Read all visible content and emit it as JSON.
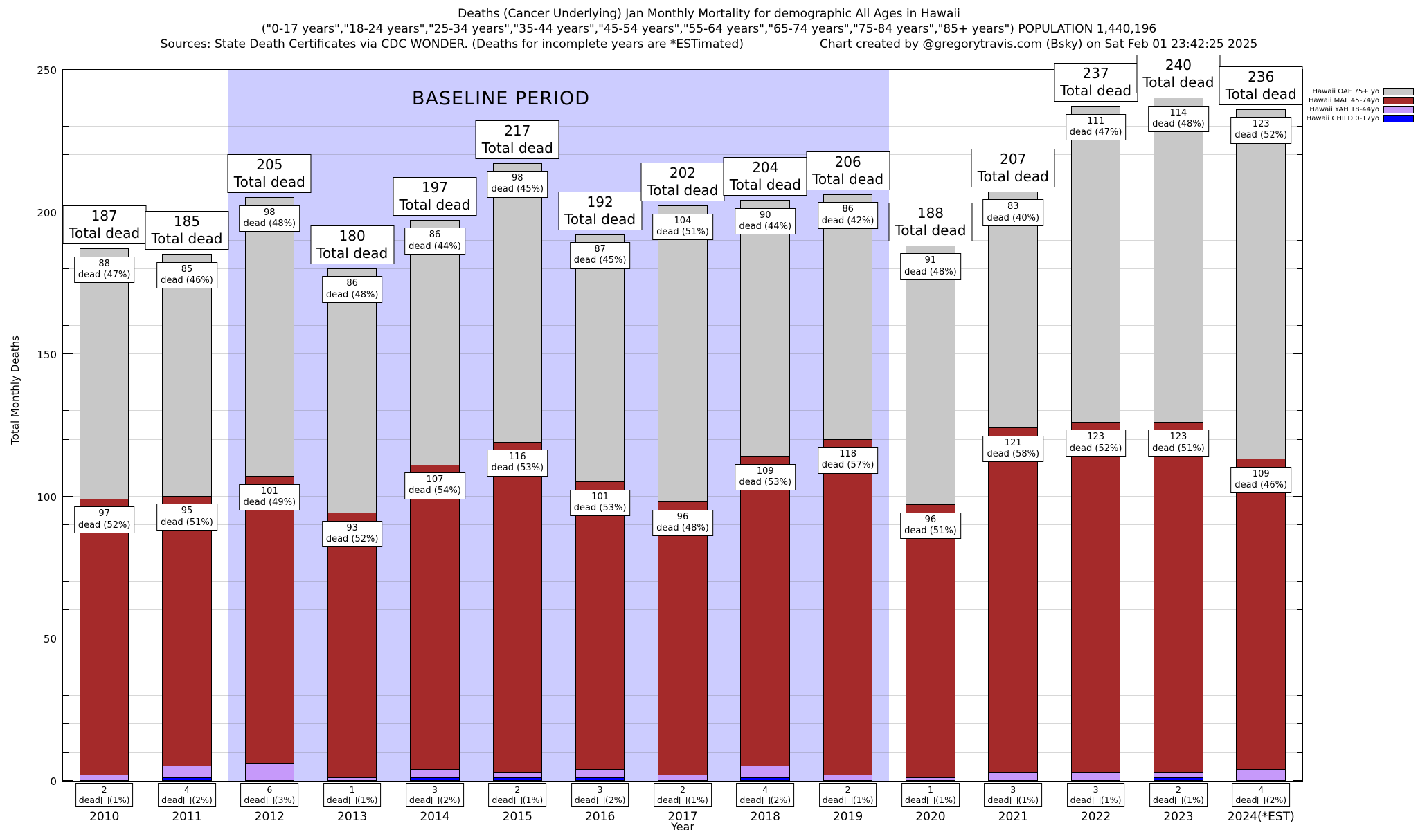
{
  "header": {
    "title_line1": "Deaths (Cancer Underlying) Jan Monthly Mortality for demographic All Ages in Hawaii",
    "title_line2": "(\"0-17 years\",\"18-24 years\",\"25-34 years\",\"35-44 years\",\"45-54 years\",\"55-64 years\",\"65-74 years\",\"75-84 years\",\"85+ years\") POPULATION 1,440,196",
    "sources": "Sources: State Death Certificates via CDC WONDER. (Deaths for incomplete years are *ESTimated)",
    "credit": "Chart created by @gregorytravis.com (Bsky) on Sat Feb 01 23:42:25 2025"
  },
  "legend": [
    {
      "label": "Hawaii OAF 75+ yo",
      "color": "#c8c8c8"
    },
    {
      "label": "Hawaii MAL 45-74yo",
      "color": "#a52a2a"
    },
    {
      "label": "Hawaii YAH 18-44yo",
      "color": "#c699fa"
    },
    {
      "label": "Hawaii CHILD 0-17yo",
      "color": "#0000ff"
    }
  ],
  "axes": {
    "ylabel": "Total Monthly Deaths",
    "xlabel": "Year",
    "ylim": [
      0,
      250
    ],
    "yticks_major": [
      0,
      50,
      100,
      150,
      200,
      250
    ],
    "ytick_minor_step": 10,
    "grid_step": 10
  },
  "baseline": {
    "label": "BASELINE PERIOD",
    "start_year": "2012",
    "end_year": "2019",
    "band_color": "#ccccff"
  },
  "chart_data": {
    "type": "bar",
    "stacked": true,
    "title": "Deaths (Cancer Underlying) Jan Monthly Mortality for demographic All Ages in Hawaii",
    "xlabel": "Year",
    "ylabel": "Total Monthly Deaths",
    "ylim": [
      0,
      250
    ],
    "legend_position": "top-right",
    "categories": [
      "2010",
      "2011",
      "2012",
      "2013",
      "2014",
      "2015",
      "2016",
      "2017",
      "2018",
      "2019",
      "2020",
      "2021",
      "2022",
      "2023",
      "2024(*EST)"
    ],
    "totals": [
      187,
      185,
      205,
      180,
      197,
      217,
      192,
      202,
      204,
      206,
      188,
      207,
      237,
      240,
      236
    ],
    "total_label_suffix": "Total dead",
    "series": [
      {
        "name": "Hawaii CHILD 0-17yo",
        "color": "#0000ff",
        "values": [
          0,
          1,
          0,
          0,
          1,
          1,
          1,
          0,
          1,
          0,
          0,
          0,
          0,
          1,
          0
        ],
        "labeled": false
      },
      {
        "name": "Hawaii YAH 18-44yo",
        "color": "#c699fa",
        "values": [
          2,
          4,
          6,
          1,
          3,
          2,
          3,
          2,
          4,
          2,
          1,
          3,
          3,
          2,
          4
        ],
        "pcts": [
          1,
          2,
          3,
          1,
          2,
          1,
          2,
          1,
          2,
          1,
          1,
          1,
          1,
          1,
          2
        ],
        "labeled": true
      },
      {
        "name": "Hawaii MAL 45-74yo",
        "color": "#a52a2a",
        "values": [
          97,
          95,
          101,
          93,
          107,
          116,
          101,
          96,
          109,
          118,
          96,
          121,
          123,
          123,
          109
        ],
        "pcts": [
          52,
          51,
          49,
          52,
          54,
          53,
          53,
          48,
          53,
          57,
          51,
          58,
          52,
          51,
          46
        ],
        "labeled": true
      },
      {
        "name": "Hawaii OAF 75+ yo",
        "color": "#c8c8c8",
        "values": [
          88,
          85,
          98,
          86,
          86,
          98,
          87,
          104,
          90,
          86,
          91,
          83,
          111,
          114,
          123
        ],
        "pcts": [
          47,
          46,
          48,
          48,
          44,
          45,
          45,
          51,
          44,
          42,
          48,
          40,
          47,
          48,
          52
        ],
        "labeled": true
      }
    ],
    "segment_label_word": "dead"
  }
}
